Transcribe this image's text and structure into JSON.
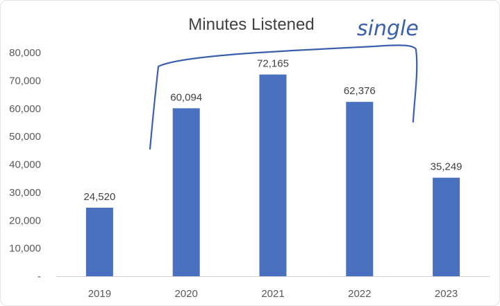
{
  "chart_data": {
    "type": "bar",
    "title": "Minutes Listened",
    "categories": [
      "2019",
      "2020",
      "2021",
      "2022",
      "2023"
    ],
    "values": [
      24520,
      60094,
      72165,
      62376,
      35249
    ],
    "data_labels": [
      "24,520",
      "60,094",
      "72,165",
      "62,376",
      "35,249"
    ],
    "ylim": [
      0,
      80000
    ],
    "yticks": [
      0,
      10000,
      20000,
      30000,
      40000,
      50000,
      60000,
      70000,
      80000
    ],
    "ytick_labels": [
      "-",
      "10,000",
      "20,000",
      "30,000",
      "40,000",
      "50,000",
      "60,000",
      "70,000",
      "80,000"
    ],
    "grid": false,
    "bar_color": "#4a70c0",
    "axis_color": "#d0d0d0",
    "annotation": {
      "text": "single",
      "color": "#3a5fae",
      "spans_categories": [
        "2020",
        "2021",
        "2022"
      ]
    }
  }
}
